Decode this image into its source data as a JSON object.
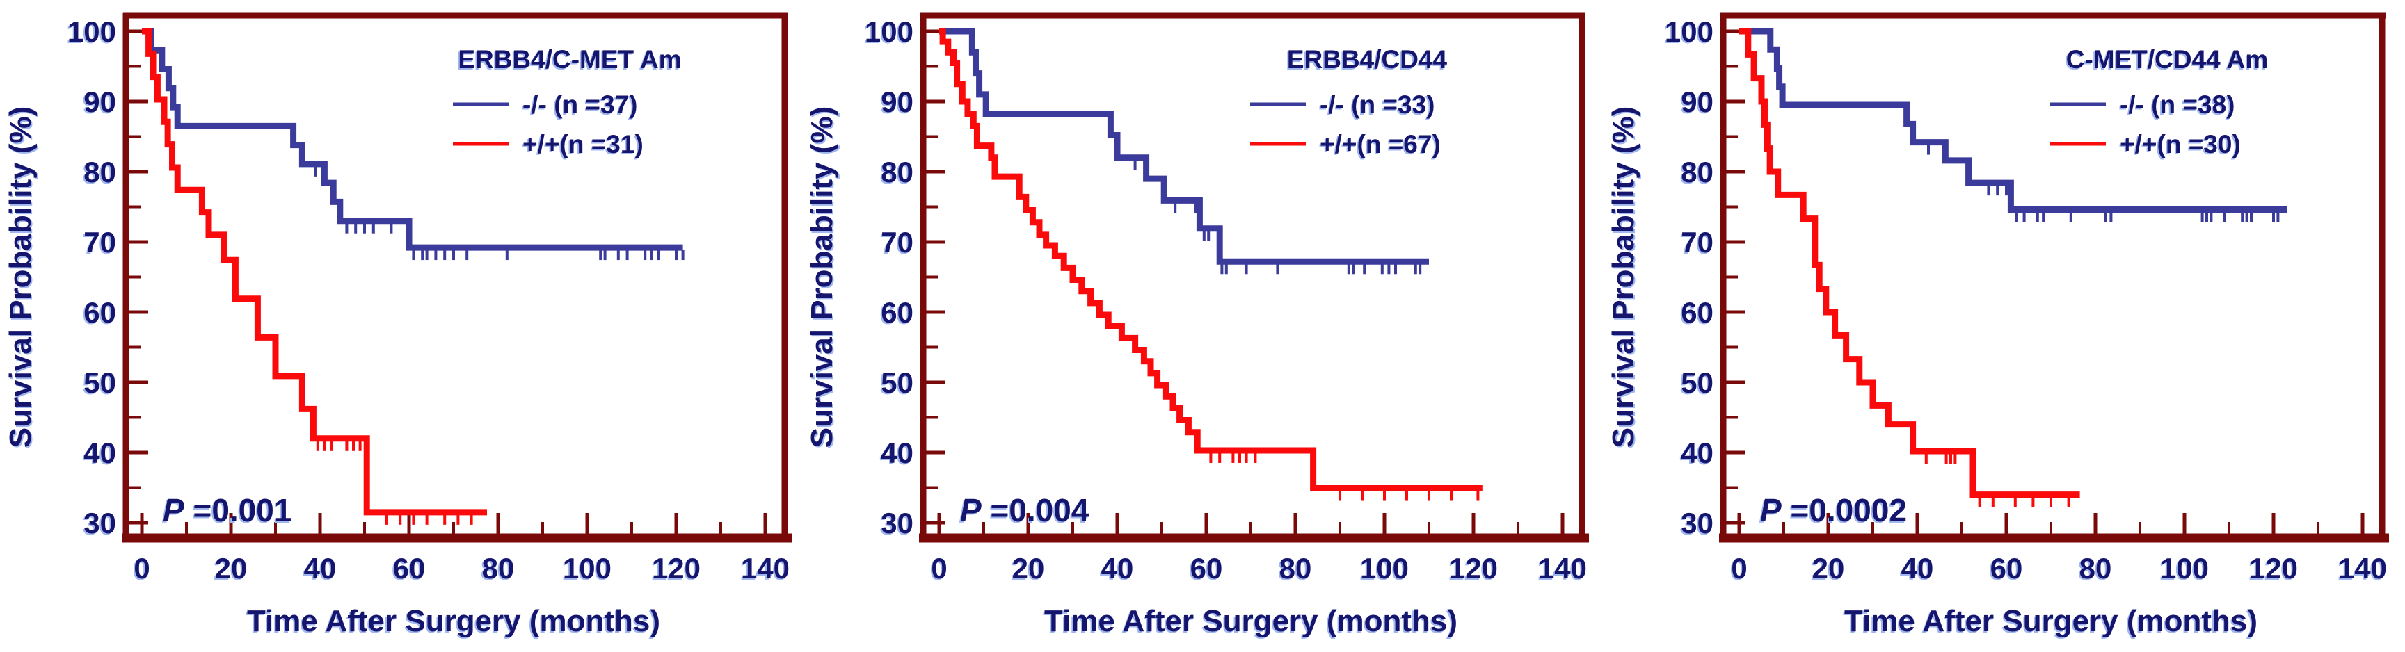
{
  "colors": {
    "frame": "#7A0A0A",
    "curve_blue": "#3B3B9B",
    "curve_red": "#FA0A0A",
    "text_navy": "#15156E",
    "text_halo": "#9FB6EF",
    "background": "#FFFFFF"
  },
  "axes": {
    "y_label": "Survival Probability (%)",
    "x_label": "Time After Surgery (months)",
    "y_major_ticks": [
      100,
      90,
      80,
      70,
      60,
      50,
      40,
      30
    ],
    "y_minor_ticks": [
      95,
      85,
      75,
      65,
      55,
      45,
      35
    ],
    "x_major_ticks": [
      0,
      20,
      40,
      60,
      80,
      100,
      120,
      140
    ],
    "x_minor_ticks": [
      10,
      30,
      50,
      70,
      90,
      110,
      130
    ],
    "y_range": [
      30,
      100
    ],
    "x_range": [
      0,
      140
    ],
    "grid": "off",
    "legend_position": "top-right-inside"
  },
  "chart_data": [
    {
      "type": "line",
      "subtype": "kaplan-meier-step",
      "title": "ERBB4/C-MET Am",
      "p_value_label": "P =0.001",
      "p_value": 0.001,
      "xlabel": "Time After Surgery (months)",
      "ylabel": "Survival Probability (%)",
      "series": [
        {
          "name": "-/-",
          "legend_label": "-/- (n =37)",
          "n": 37,
          "color_key": "curve_blue",
          "steps": [
            [
              0,
              100
            ],
            [
              2,
              97.3
            ],
            [
              4.5,
              94.6
            ],
            [
              6,
              91.9
            ],
            [
              7,
              89.2
            ],
            [
              8,
              86.5
            ],
            [
              34,
              83.8
            ],
            [
              36,
              81.1
            ],
            [
              41,
              78.4
            ],
            [
              43,
              75.7
            ],
            [
              44.5,
              73
            ],
            [
              60,
              69.2
            ]
          ],
          "end_t": 121.5,
          "censors": [
            39,
            46,
            48,
            50,
            52,
            56,
            61,
            63,
            64,
            66,
            68,
            70,
            73,
            82,
            103,
            104,
            107,
            109,
            113,
            114.5,
            116,
            120,
            121.5
          ]
        },
        {
          "name": "+/+",
          "legend_label": "+/+(n =31)",
          "n": 31,
          "color_key": "curve_red",
          "steps": [
            [
              0,
              100
            ],
            [
              1.5,
              96.8
            ],
            [
              2.5,
              93.5
            ],
            [
              3.5,
              90.3
            ],
            [
              5,
              87.1
            ],
            [
              5.8,
              83.9
            ],
            [
              6.8,
              80.6
            ],
            [
              8,
              77.4
            ],
            [
              13.5,
              74.2
            ],
            [
              15,
              71
            ],
            [
              18.5,
              67.4
            ],
            [
              21,
              61.9
            ],
            [
              26,
              56.4
            ],
            [
              30,
              50.9
            ],
            [
              36,
              46.2
            ],
            [
              38.5,
              42
            ],
            [
              50.5,
              31.5
            ]
          ],
          "end_t": 77.5,
          "censors": [
            39.5,
            41,
            42.5,
            46,
            47.5,
            49,
            55,
            58,
            61,
            64,
            68,
            71,
            74
          ]
        }
      ]
    },
    {
      "type": "line",
      "subtype": "kaplan-meier-step",
      "title": "ERBB4/CD44",
      "p_value_label": "P =0.004",
      "p_value": 0.004,
      "xlabel": "Time After Surgery (months)",
      "ylabel": "Survival Probability (%)",
      "series": [
        {
          "name": "-/-",
          "legend_label": "-/- (n =33)",
          "n": 33,
          "color_key": "curve_blue",
          "steps": [
            [
              0,
              100
            ],
            [
              7.4,
              97
            ],
            [
              8.2,
              94
            ],
            [
              9,
              91
            ],
            [
              10.5,
              88.2
            ],
            [
              38.5,
              85.2
            ],
            [
              40,
              82
            ],
            [
              46.5,
              79
            ],
            [
              50.5,
              75.9
            ],
            [
              58.5,
              71.9
            ],
            [
              63,
              67.2
            ]
          ],
          "end_t": 110,
          "censors": [
            44,
            53,
            57.5,
            59.5,
            60.5,
            63.5,
            64.5,
            69,
            76,
            92,
            93,
            95.5,
            99.5,
            101,
            102.5,
            107,
            108
          ]
        },
        {
          "name": "+/+",
          "legend_label": "+/+(n =67)",
          "n": 67,
          "color_key": "curve_red",
          "steps": [
            [
              0,
              100
            ],
            [
              0.8,
              98.5
            ],
            [
              2,
              97
            ],
            [
              3.2,
              95.5
            ],
            [
              4,
              92.5
            ],
            [
              5.2,
              90
            ],
            [
              6.4,
              88.2
            ],
            [
              7.7,
              86.5
            ],
            [
              8.5,
              83.7
            ],
            [
              11.7,
              82
            ],
            [
              12.5,
              79.3
            ],
            [
              18,
              76.4
            ],
            [
              19.5,
              74.5
            ],
            [
              21,
              72.8
            ],
            [
              22.5,
              71
            ],
            [
              24,
              69.5
            ],
            [
              26,
              68
            ],
            [
              28,
              66.3
            ],
            [
              30,
              64.6
            ],
            [
              32,
              63
            ],
            [
              34,
              61.3
            ],
            [
              36,
              59.6
            ],
            [
              38,
              58
            ],
            [
              41,
              56.3
            ],
            [
              44,
              54.6
            ],
            [
              46,
              53
            ],
            [
              47.5,
              51.3
            ],
            [
              49,
              49.6
            ],
            [
              51,
              48
            ],
            [
              52.5,
              46.3
            ],
            [
              54,
              44.6
            ],
            [
              56,
              42.9
            ],
            [
              58,
              40.3
            ],
            [
              84,
              34.9
            ]
          ],
          "end_t": 122,
          "censors": [
            61,
            63,
            66,
            67.5,
            69,
            71,
            90,
            95,
            100,
            105,
            110,
            115,
            121
          ]
        }
      ]
    },
    {
      "type": "line",
      "subtype": "kaplan-meier-step",
      "title": "C-MET/CD44 Am",
      "p_value_label": "P =0.0002",
      "p_value": 0.0002,
      "xlabel": "Time After Surgery (months)",
      "ylabel": "Survival Probability (%)",
      "series": [
        {
          "name": "-/-",
          "legend_label": "-/- (n =38)",
          "n": 38,
          "color_key": "curve_blue",
          "steps": [
            [
              0,
              100
            ],
            [
              7,
              97.4
            ],
            [
              8.5,
              94.7
            ],
            [
              9,
              92.1
            ],
            [
              9.7,
              89.5
            ],
            [
              37.6,
              86.8
            ],
            [
              39,
              84.2
            ],
            [
              46.3,
              81.6
            ],
            [
              51.5,
              78.4
            ],
            [
              61,
              74.6
            ]
          ],
          "end_t": 123,
          "censors": [
            42.5,
            56,
            58,
            60,
            62.3,
            64,
            67,
            68.3,
            74.5,
            82.3,
            83.5,
            104,
            105,
            106,
            109,
            113,
            114,
            115,
            120,
            121
          ]
        },
        {
          "name": "+/+",
          "legend_label": "+/+(n =30)",
          "n": 30,
          "color_key": "curve_red",
          "steps": [
            [
              0,
              100
            ],
            [
              2,
              96.7
            ],
            [
              3.3,
              93.3
            ],
            [
              5,
              90
            ],
            [
              5.7,
              86.7
            ],
            [
              6.3,
              83.3
            ],
            [
              6.9,
              80
            ],
            [
              8.7,
              76.7
            ],
            [
              14.4,
              73.3
            ],
            [
              17,
              66.7
            ],
            [
              18,
              63.3
            ],
            [
              19.5,
              60
            ],
            [
              21.5,
              56.7
            ],
            [
              24,
              53.3
            ],
            [
              27,
              50
            ],
            [
              30,
              46.7
            ],
            [
              33.5,
              44
            ],
            [
              39,
              40.2
            ],
            [
              52.5,
              34
            ]
          ],
          "end_t": 76.5,
          "censors": [
            42,
            46.5,
            47.5,
            48.5,
            54,
            57,
            62,
            66,
            70,
            74
          ]
        }
      ]
    }
  ]
}
